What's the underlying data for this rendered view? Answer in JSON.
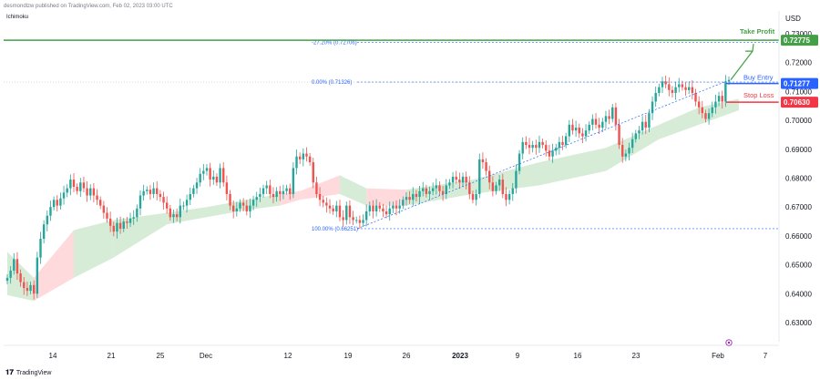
{
  "header": {
    "publisher": "desmondlzw published on TradingView.com, Feb 02, 2023 03:00 UTC",
    "indicator": "Ichimoku"
  },
  "footer": {
    "logo_text": "TradingView"
  },
  "colors": {
    "up": "#26a69a",
    "down": "#ef5350",
    "take_profit": "#43a047",
    "entry": "#2962ff",
    "stop": "#f23645",
    "cloud_green": "#c8e6c9",
    "cloud_red": "#ffcdd2"
  },
  "chart_data": {
    "type": "candlestick",
    "currency": "USD",
    "y_ticks": [
      "0.73000",
      "0.72000",
      "0.71000",
      "0.70000",
      "0.69000",
      "0.68000",
      "0.67000",
      "0.66000",
      "0.65000",
      "0.64000",
      "0.63000"
    ],
    "ylim": [
      0.62,
      0.735
    ],
    "x_ticks": [
      "14",
      "21",
      "25",
      "Dec",
      "12",
      "19",
      "26",
      "2023",
      "9",
      "16",
      "23",
      "Feb",
      "7"
    ],
    "levels": [
      {
        "name": "Take Profit",
        "value": 0.72775,
        "label": "0.72775"
      },
      {
        "name": "Buy Entry",
        "value": 0.71277,
        "label": "0.71277"
      },
      {
        "name": "Stop Loss",
        "value": 0.7063,
        "label": "0.70630"
      }
    ],
    "fib_levels": [
      {
        "label": "-27.20% (0.72706)",
        "value": 0.72706
      },
      {
        "label": "0.00% (0.71326)",
        "value": 0.71326
      },
      {
        "label": "100.00% (0.66251)",
        "value": 0.66251
      }
    ],
    "closes": [
      0.6455,
      0.648,
      0.652,
      0.647,
      0.644,
      0.642,
      0.641,
      0.643,
      0.64,
      0.6525,
      0.659,
      0.664,
      0.667,
      0.67,
      0.6725,
      0.6705,
      0.673,
      0.675,
      0.6765,
      0.6795,
      0.677,
      0.6755,
      0.6785,
      0.6765,
      0.674,
      0.6765,
      0.674,
      0.6725,
      0.6705,
      0.668,
      0.666,
      0.6635,
      0.6615,
      0.6645,
      0.6625,
      0.665,
      0.6645,
      0.666,
      0.6665,
      0.6695,
      0.674,
      0.6755,
      0.676,
      0.6745,
      0.6765,
      0.6745,
      0.6735,
      0.6715,
      0.6695,
      0.6665,
      0.6675,
      0.6665,
      0.6705,
      0.6705,
      0.6725,
      0.6745,
      0.6765,
      0.6785,
      0.6815,
      0.6825,
      0.6835,
      0.6795,
      0.6805,
      0.6785,
      0.6835,
      0.6785,
      0.6745,
      0.6705,
      0.6685,
      0.6695,
      0.6715,
      0.6705,
      0.6685,
      0.6705,
      0.6725,
      0.6735,
      0.6745,
      0.6765,
      0.6775,
      0.6745,
      0.6735,
      0.6755,
      0.6745,
      0.6755,
      0.6765,
      0.6745,
      0.6835,
      0.6875,
      0.6865,
      0.6885,
      0.6875,
      0.6855,
      0.6785,
      0.6745,
      0.6725,
      0.6715,
      0.6705,
      0.6695,
      0.6685,
      0.6705,
      0.6665,
      0.6655,
      0.6705,
      0.6665,
      0.6655,
      0.6655,
      0.6645,
      0.6655,
      0.6685,
      0.6705,
      0.6685,
      0.6705,
      0.6695,
      0.6685,
      0.6675,
      0.6695,
      0.6705,
      0.6695,
      0.6705,
      0.6725,
      0.6735,
      0.6725,
      0.6745,
      0.6735,
      0.6755,
      0.6765,
      0.6745,
      0.6755,
      0.6765,
      0.6775,
      0.6755,
      0.6745,
      0.6775,
      0.6785,
      0.6805,
      0.6795,
      0.6785,
      0.6805,
      0.6785,
      0.6745,
      0.6725,
      0.6745,
      0.6865,
      0.6855,
      0.6825,
      0.6785,
      0.6755,
      0.6775,
      0.6795,
      0.6745,
      0.6725,
      0.6745,
      0.6765,
      0.6825,
      0.6885,
      0.6925,
      0.6915,
      0.6905,
      0.6915,
      0.6905,
      0.6925,
      0.6915,
      0.6895,
      0.6875,
      0.6895,
      0.6905,
      0.6925,
      0.6915,
      0.6945,
      0.6985,
      0.6965,
      0.6975,
      0.6955,
      0.6945,
      0.6965,
      0.6985,
      0.7005,
      0.6985,
      0.6975,
      0.6995,
      0.7015,
      0.7005,
      0.7045,
      0.6985,
      0.6915,
      0.6875,
      0.6885,
      0.6905,
      0.6935,
      0.6955,
      0.6965,
      0.6995,
      0.6975,
      0.7025,
      0.7065,
      0.7095,
      0.7115,
      0.7135,
      0.7125,
      0.7105,
      0.7095,
      0.7115,
      0.7125,
      0.7115,
      0.7105,
      0.7115,
      0.7095,
      0.7065,
      0.7045,
      0.7025,
      0.7005,
      0.7025,
      0.7045,
      0.7065,
      0.7085,
      0.7065,
      0.7135,
      0.714
    ],
    "cloud": [
      {
        "x": 0,
        "top": 0.6545,
        "bottom": 0.6395,
        "color": "green"
      },
      {
        "x": 8,
        "top": 0.6455,
        "bottom": 0.6375,
        "color": "red"
      },
      {
        "x": 20,
        "top": 0.662,
        "bottom": 0.6455,
        "color": "green"
      },
      {
        "x": 32,
        "top": 0.6655,
        "bottom": 0.6525,
        "color": "green"
      },
      {
        "x": 48,
        "top": 0.668,
        "bottom": 0.664,
        "color": "green"
      },
      {
        "x": 60,
        "top": 0.67,
        "bottom": 0.6665,
        "color": "green"
      },
      {
        "x": 72,
        "top": 0.6725,
        "bottom": 0.669,
        "color": "green"
      },
      {
        "x": 82,
        "top": 0.6745,
        "bottom": 0.6705,
        "color": "red"
      },
      {
        "x": 88,
        "top": 0.6755,
        "bottom": 0.6725,
        "color": "red"
      },
      {
        "x": 100,
        "top": 0.681,
        "bottom": 0.6745,
        "color": "green"
      },
      {
        "x": 108,
        "top": 0.6765,
        "bottom": 0.6705,
        "color": "red"
      },
      {
        "x": 120,
        "top": 0.676,
        "bottom": 0.6705,
        "color": "green"
      },
      {
        "x": 140,
        "top": 0.6795,
        "bottom": 0.6745,
        "color": "green"
      },
      {
        "x": 160,
        "top": 0.6855,
        "bottom": 0.6775,
        "color": "green"
      },
      {
        "x": 180,
        "top": 0.6905,
        "bottom": 0.6825,
        "color": "green"
      },
      {
        "x": 196,
        "top": 0.6985,
        "bottom": 0.6935,
        "color": "green"
      },
      {
        "x": 208,
        "top": 0.7045,
        "bottom": 0.6985,
        "color": "green"
      },
      {
        "x": 220,
        "top": 0.7075,
        "bottom": 0.7035,
        "color": "green"
      }
    ]
  }
}
